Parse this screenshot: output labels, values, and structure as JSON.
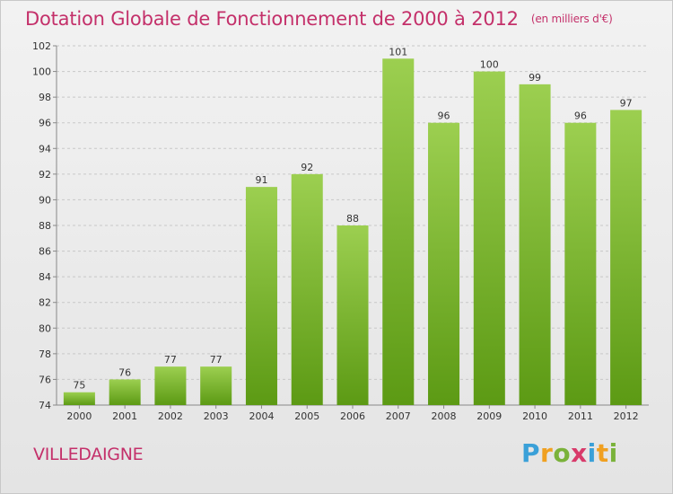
{
  "title": "Dotation Globale de Fonctionnement de 2000 à 2012",
  "unit": "(en milliers d'€)",
  "commune": "VILLEDAIGNE",
  "logo": {
    "letters": [
      "P",
      "r",
      "o",
      "x",
      "i",
      "t",
      "i"
    ],
    "colors": [
      "#3aa0d8",
      "#f0a020",
      "#7ab23a",
      "#d83a6a",
      "#3aa0d8",
      "#f0a020",
      "#7ab23a"
    ]
  },
  "colors": {
    "bar_top": "#9ccf50",
    "bar_bottom": "#5c9a14",
    "title": "#c4306a",
    "grid": "#c8c8c8"
  },
  "chart_data": {
    "type": "bar",
    "categories": [
      "2000",
      "2001",
      "2002",
      "2003",
      "2004",
      "2005",
      "2006",
      "2007",
      "2008",
      "2009",
      "2010",
      "2011",
      "2012"
    ],
    "values": [
      75,
      76,
      77,
      77,
      91,
      92,
      88,
      101,
      96,
      100,
      99,
      96,
      97
    ],
    "ylim": [
      74,
      102
    ],
    "yticks": [
      74,
      76,
      78,
      80,
      82,
      84,
      86,
      88,
      90,
      92,
      94,
      96,
      98,
      100,
      102
    ],
    "grid": true,
    "xlabel": "",
    "ylabel": ""
  }
}
